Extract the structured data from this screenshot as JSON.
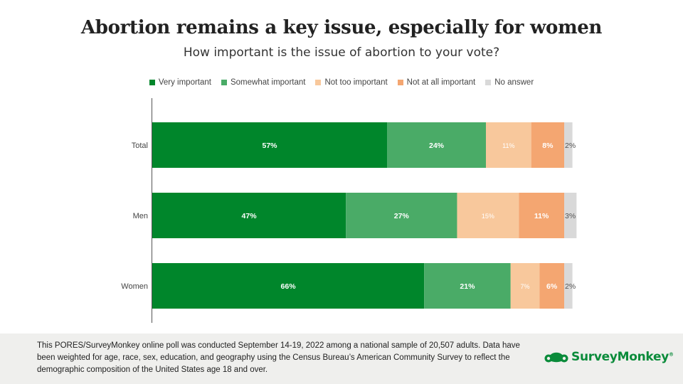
{
  "header": {
    "title": "Abortion remains a key issue, especially for women",
    "subtitle": "How important is the issue of abortion to your vote?"
  },
  "legend": [
    {
      "label": "Very important",
      "color": "#00862b"
    },
    {
      "label": "Somewhat important",
      "color": "#4aab67"
    },
    {
      "label": "Not too important",
      "color": "#f8c89c"
    },
    {
      "label": "Not at all important",
      "color": "#f4a671"
    },
    {
      "label": "No answer",
      "color": "#d9d9d9"
    }
  ],
  "chart_data": {
    "type": "bar",
    "orientation": "horizontal",
    "stacked": true,
    "categories": [
      "Total",
      "Men",
      "Women"
    ],
    "series": [
      {
        "name": "Very important",
        "values": [
          57,
          47,
          66
        ],
        "color": "#00862b",
        "label_color": "#ffffff"
      },
      {
        "name": "Somewhat important",
        "values": [
          24,
          27,
          21
        ],
        "color": "#4aab67",
        "label_color": "#ffffff"
      },
      {
        "name": "Not too important",
        "values": [
          11,
          15,
          7
        ],
        "color": "#f8c89c",
        "label_color": "#ffffff"
      },
      {
        "name": "Not at all important",
        "values": [
          8,
          11,
          6
        ],
        "color": "#f4a671",
        "label_color": "#ffffff"
      },
      {
        "name": "No answer",
        "values": [
          2,
          3,
          2
        ],
        "color": "#d9d9d9",
        "label_color": "#555555"
      }
    ],
    "value_suffix": "%",
    "xlim": [
      0,
      100
    ],
    "legend_position": "top",
    "grid": false
  },
  "footer": {
    "note": "This PORES/SurveyMonkey online poll was conducted September 14-19, 2022 among a national sample of 20,507 adults. Data have been weighted for age, race, sex, education, and geography using the Census Bureau’s American Community Survey to reflect the demographic composition of the United States age 18 and over.",
    "logo_text": "SurveyMonkey",
    "logo_mark": "®",
    "logo_icon": "surveymonkey-logo-icon"
  }
}
